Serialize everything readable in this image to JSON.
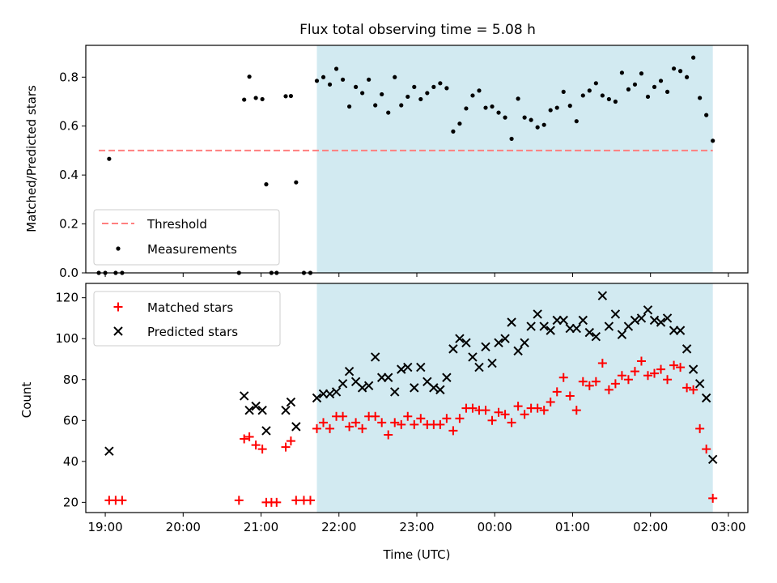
{
  "chart_data": [
    {
      "type": "scatter",
      "title": "Flux total observing time = 5.08 h",
      "xlabel": "",
      "ylabel": "Matched/Predicted stars",
      "xlim": [
        "18:45",
        "03:15"
      ],
      "ylim": [
        0,
        0.93
      ],
      "yticks": [
        "0.0",
        "0.2",
        "0.4",
        "0.6",
        "0.8"
      ],
      "shaded_interval": [
        "21:43",
        "02:48"
      ],
      "shade_color": "#add8e6",
      "threshold": {
        "name": "Threshold",
        "value": 0.5,
        "from": "18:55",
        "to": "02:48",
        "color": "#ff7f7f",
        "style": "dashed"
      },
      "legend_position": "lower-left",
      "series": [
        {
          "name": "Measurements",
          "color": "#000000",
          "points": [
            [
              "18:55",
              0.0
            ],
            [
              "19:00",
              0.0
            ],
            [
              "19:03",
              0.466
            ],
            [
              "19:08",
              0.0
            ],
            [
              "19:13",
              0.0
            ],
            [
              "20:43",
              0.0
            ],
            [
              "20:47",
              0.708
            ],
            [
              "20:51",
              0.802
            ],
            [
              "20:56",
              0.715
            ],
            [
              "21:01",
              0.71
            ],
            [
              "21:04",
              0.362
            ],
            [
              "21:08",
              0.0
            ],
            [
              "21:12",
              0.0
            ],
            [
              "21:19",
              0.722
            ],
            [
              "21:23",
              0.723
            ],
            [
              "21:27",
              0.37
            ],
            [
              "21:33",
              0.0
            ],
            [
              "21:38",
              0.0
            ],
            [
              "21:43",
              0.785
            ],
            [
              "21:48",
              0.8
            ],
            [
              "21:53",
              0.77
            ],
            [
              "21:58",
              0.834
            ],
            [
              "22:03",
              0.79
            ],
            [
              "22:08",
              0.68
            ],
            [
              "22:13",
              0.76
            ],
            [
              "22:18",
              0.735
            ],
            [
              "22:23",
              0.79
            ],
            [
              "22:28",
              0.685
            ],
            [
              "22:33",
              0.73
            ],
            [
              "22:38",
              0.655
            ],
            [
              "22:43",
              0.8
            ],
            [
              "22:48",
              0.685
            ],
            [
              "22:53",
              0.72
            ],
            [
              "22:58",
              0.76
            ],
            [
              "23:03",
              0.71
            ],
            [
              "23:08",
              0.735
            ],
            [
              "23:13",
              0.76
            ],
            [
              "23:18",
              0.775
            ],
            [
              "23:23",
              0.755
            ],
            [
              "23:28",
              0.578
            ],
            [
              "23:33",
              0.61
            ],
            [
              "23:38",
              0.672
            ],
            [
              "23:43",
              0.725
            ],
            [
              "23:48",
              0.745
            ],
            [
              "23:53",
              0.675
            ],
            [
              "23:58",
              0.68
            ],
            [
              "00:03",
              0.655
            ],
            [
              "00:08",
              0.635
            ],
            [
              "00:13",
              0.548
            ],
            [
              "00:18",
              0.712
            ],
            [
              "00:23",
              0.635
            ],
            [
              "00:28",
              0.625
            ],
            [
              "00:33",
              0.595
            ],
            [
              "00:38",
              0.605
            ],
            [
              "00:43",
              0.665
            ],
            [
              "00:48",
              0.675
            ],
            [
              "00:53",
              0.74
            ],
            [
              "00:58",
              0.683
            ],
            [
              "01:03",
              0.62
            ],
            [
              "01:08",
              0.725
            ],
            [
              "01:13",
              0.745
            ],
            [
              "01:18",
              0.775
            ],
            [
              "01:23",
              0.725
            ],
            [
              "01:28",
              0.71
            ],
            [
              "01:33",
              0.7
            ],
            [
              "01:38",
              0.818
            ],
            [
              "01:43",
              0.75
            ],
            [
              "01:48",
              0.77
            ],
            [
              "01:53",
              0.815
            ],
            [
              "01:58",
              0.72
            ],
            [
              "02:03",
              0.76
            ],
            [
              "02:08",
              0.785
            ],
            [
              "02:13",
              0.74
            ],
            [
              "02:18",
              0.835
            ],
            [
              "02:23",
              0.825
            ],
            [
              "02:28",
              0.8
            ],
            [
              "02:33",
              0.88
            ],
            [
              "02:38",
              0.715
            ],
            [
              "02:43",
              0.645
            ],
            [
              "02:48",
              0.54
            ]
          ]
        }
      ]
    },
    {
      "type": "scatter",
      "title": "",
      "xlabel": "Time (UTC)",
      "ylabel": "Count",
      "xlim": [
        "18:45",
        "03:15"
      ],
      "ylim": [
        15,
        127
      ],
      "xticks": [
        "19:00",
        "20:00",
        "21:00",
        "22:00",
        "23:00",
        "00:00",
        "01:00",
        "02:00",
        "03:00"
      ],
      "yticks": [
        "20",
        "40",
        "60",
        "80",
        "100",
        "120"
      ],
      "shaded_interval": [
        "21:43",
        "02:48"
      ],
      "shade_color": "#add8e6",
      "legend_position": "upper-left",
      "series": [
        {
          "name": "Matched stars",
          "marker": "plus",
          "color": "#ff0000",
          "points": [
            [
              "19:03",
              21
            ],
            [
              "19:08",
              21
            ],
            [
              "19:13",
              21
            ],
            [
              "20:43",
              21
            ],
            [
              "20:47",
              51
            ],
            [
              "20:51",
              52
            ],
            [
              "20:56",
              48
            ],
            [
              "21:01",
              46
            ],
            [
              "21:04",
              20
            ],
            [
              "21:08",
              20
            ],
            [
              "21:12",
              20
            ],
            [
              "21:19",
              47
            ],
            [
              "21:23",
              50
            ],
            [
              "21:27",
              21
            ],
            [
              "21:33",
              21
            ],
            [
              "21:38",
              21
            ],
            [
              "21:43",
              56
            ],
            [
              "21:48",
              59
            ],
            [
              "21:53",
              56
            ],
            [
              "21:58",
              62
            ],
            [
              "22:03",
              62
            ],
            [
              "22:08",
              57
            ],
            [
              "22:13",
              59
            ],
            [
              "22:18",
              56
            ],
            [
              "22:23",
              62
            ],
            [
              "22:28",
              62
            ],
            [
              "22:33",
              59
            ],
            [
              "22:38",
              53
            ],
            [
              "22:43",
              59
            ],
            [
              "22:48",
              58
            ],
            [
              "22:53",
              62
            ],
            [
              "22:58",
              58
            ],
            [
              "23:03",
              61
            ],
            [
              "23:08",
              58
            ],
            [
              "23:13",
              58
            ],
            [
              "23:18",
              58
            ],
            [
              "23:23",
              61
            ],
            [
              "23:28",
              55
            ],
            [
              "23:33",
              61
            ],
            [
              "23:38",
              66
            ],
            [
              "23:43",
              66
            ],
            [
              "23:48",
              65
            ],
            [
              "23:53",
              65
            ],
            [
              "23:58",
              60
            ],
            [
              "00:03",
              64
            ],
            [
              "00:08",
              63
            ],
            [
              "00:13",
              59
            ],
            [
              "00:18",
              67
            ],
            [
              "00:23",
              63
            ],
            [
              "00:28",
              66
            ],
            [
              "00:33",
              66
            ],
            [
              "00:38",
              65
            ],
            [
              "00:43",
              69
            ],
            [
              "00:48",
              74
            ],
            [
              "00:53",
              81
            ],
            [
              "00:58",
              72
            ],
            [
              "01:03",
              65
            ],
            [
              "01:08",
              79
            ],
            [
              "01:13",
              77
            ],
            [
              "01:18",
              79
            ],
            [
              "01:23",
              88
            ],
            [
              "01:28",
              75
            ],
            [
              "01:33",
              78
            ],
            [
              "01:38",
              82
            ],
            [
              "01:43",
              80
            ],
            [
              "01:48",
              84
            ],
            [
              "01:53",
              89
            ],
            [
              "01:58",
              82
            ],
            [
              "02:03",
              83
            ],
            [
              "02:08",
              85
            ],
            [
              "02:13",
              80
            ],
            [
              "02:18",
              87
            ],
            [
              "02:23",
              86
            ],
            [
              "02:28",
              76
            ],
            [
              "02:33",
              75
            ],
            [
              "02:38",
              56
            ],
            [
              "02:43",
              46
            ],
            [
              "02:48",
              22
            ]
          ]
        },
        {
          "name": "Predicted stars",
          "marker": "x",
          "color": "#000000",
          "points": [
            [
              "19:03",
              45
            ],
            [
              "20:47",
              72
            ],
            [
              "20:51",
              65
            ],
            [
              "20:56",
              67
            ],
            [
              "21:01",
              65
            ],
            [
              "21:04",
              55
            ],
            [
              "21:19",
              65
            ],
            [
              "21:23",
              69
            ],
            [
              "21:27",
              57
            ],
            [
              "21:43",
              71
            ],
            [
              "21:48",
              73
            ],
            [
              "21:53",
              73
            ],
            [
              "21:58",
              74
            ],
            [
              "22:03",
              78
            ],
            [
              "22:08",
              84
            ],
            [
              "22:13",
              79
            ],
            [
              "22:18",
              76
            ],
            [
              "22:23",
              77
            ],
            [
              "22:28",
              91
            ],
            [
              "22:33",
              81
            ],
            [
              "22:38",
              81
            ],
            [
              "22:43",
              74
            ],
            [
              "22:48",
              85
            ],
            [
              "22:53",
              86
            ],
            [
              "22:58",
              76
            ],
            [
              "23:03",
              86
            ],
            [
              "23:08",
              79
            ],
            [
              "23:13",
              76
            ],
            [
              "23:18",
              75
            ],
            [
              "23:23",
              81
            ],
            [
              "23:28",
              95
            ],
            [
              "23:33",
              100
            ],
            [
              "23:38",
              98
            ],
            [
              "23:43",
              91
            ],
            [
              "23:48",
              86
            ],
            [
              "23:53",
              96
            ],
            [
              "23:58",
              88
            ],
            [
              "00:03",
              98
            ],
            [
              "00:08",
              100
            ],
            [
              "00:13",
              108
            ],
            [
              "00:18",
              94
            ],
            [
              "00:23",
              98
            ],
            [
              "00:28",
              106
            ],
            [
              "00:33",
              112
            ],
            [
              "00:38",
              106
            ],
            [
              "00:43",
              104
            ],
            [
              "00:48",
              109
            ],
            [
              "00:53",
              109
            ],
            [
              "00:58",
              105
            ],
            [
              "01:03",
              105
            ],
            [
              "01:08",
              109
            ],
            [
              "01:13",
              103
            ],
            [
              "01:18",
              101
            ],
            [
              "01:23",
              121
            ],
            [
              "01:28",
              106
            ],
            [
              "01:33",
              112
            ],
            [
              "01:38",
              102
            ],
            [
              "01:43",
              106
            ],
            [
              "01:48",
              109
            ],
            [
              "01:53",
              110
            ],
            [
              "01:58",
              114
            ],
            [
              "02:03",
              109
            ],
            [
              "02:08",
              108
            ],
            [
              "02:13",
              110
            ],
            [
              "02:18",
              104
            ],
            [
              "02:23",
              104
            ],
            [
              "02:28",
              95
            ],
            [
              "02:33",
              85
            ],
            [
              "02:38",
              78
            ],
            [
              "02:43",
              71
            ],
            [
              "02:48",
              41
            ]
          ]
        }
      ]
    }
  ]
}
